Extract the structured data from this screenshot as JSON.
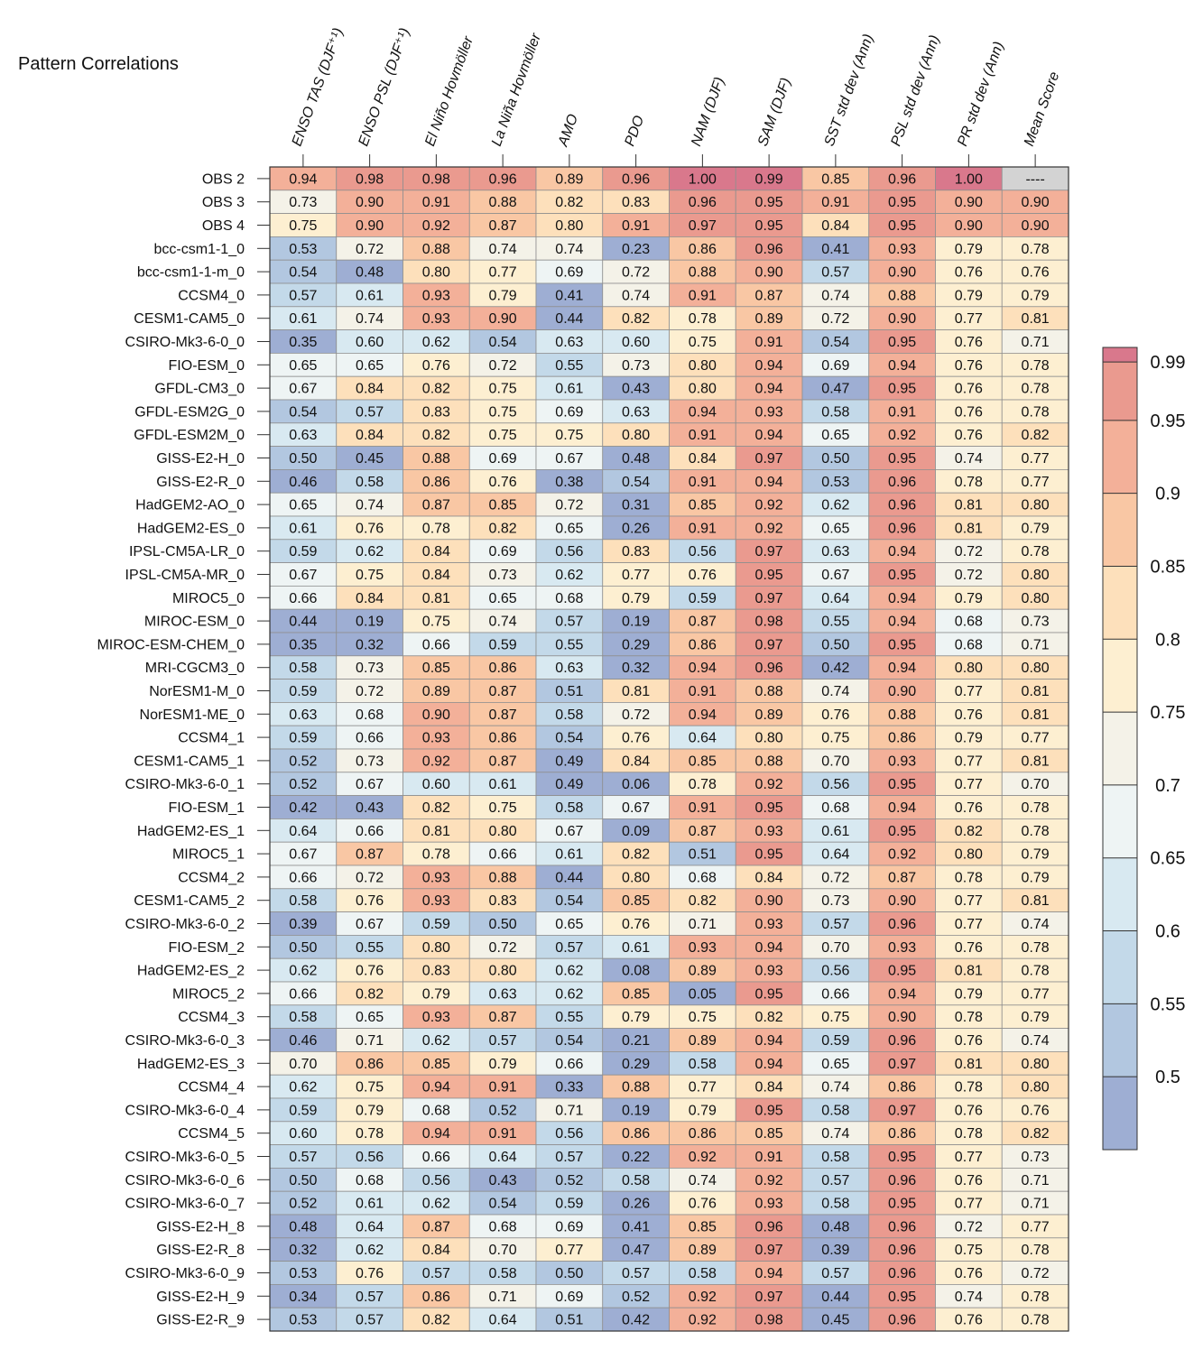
{
  "title": "Pattern Correlations",
  "chart_data": {
    "type": "heatmap",
    "columns": [
      "ENSO TAS (DJF⁺¹)",
      "ENSO PSL (DJF⁺¹)",
      "El Niño Hovmöller",
      "La Niña Hovmöller",
      "AMO",
      "PDO",
      "NAM (DJF)",
      "SAM (DJF)",
      "SST std dev (Ann)",
      "PSL std dev (Ann)",
      "PR std dev (Ann)",
      "Mean Score"
    ],
    "rows": [
      "OBS 2",
      "OBS 3",
      "OBS 4",
      "bcc-csm1-1_0",
      "bcc-csm1-1-m_0",
      "CCSM4_0",
      "CESM1-CAM5_0",
      "CSIRO-Mk3-6-0_0",
      "FIO-ESM_0",
      "GFDL-CM3_0",
      "GFDL-ESM2G_0",
      "GFDL-ESM2M_0",
      "GISS-E2-H_0",
      "GISS-E2-R_0",
      "HadGEM2-AO_0",
      "HadGEM2-ES_0",
      "IPSL-CM5A-LR_0",
      "IPSL-CM5A-MR_0",
      "MIROC5_0",
      "MIROC-ESM_0",
      "MIROC-ESM-CHEM_0",
      "MRI-CGCM3_0",
      "NorESM1-M_0",
      "NorESM1-ME_0",
      "CCSM4_1",
      "CESM1-CAM5_1",
      "CSIRO-Mk3-6-0_1",
      "FIO-ESM_1",
      "HadGEM2-ES_1",
      "MIROC5_1",
      "CCSM4_2",
      "CESM1-CAM5_2",
      "CSIRO-Mk3-6-0_2",
      "FIO-ESM_2",
      "HadGEM2-ES_2",
      "MIROC5_2",
      "CCSM4_3",
      "CSIRO-Mk3-6-0_3",
      "HadGEM2-ES_3",
      "CCSM4_4",
      "CSIRO-Mk3-6-0_4",
      "CCSM4_5",
      "CSIRO-Mk3-6-0_5",
      "CSIRO-Mk3-6-0_6",
      "CSIRO-Mk3-6-0_7",
      "GISS-E2-H_8",
      "GISS-E2-R_8",
      "CSIRO-Mk3-6-0_9",
      "GISS-E2-H_9",
      "GISS-E2-R_9"
    ],
    "values": [
      [
        "0.94",
        "0.98",
        "0.98",
        "0.96",
        "0.89",
        "0.96",
        "1.00",
        "0.99",
        "0.85",
        "0.96",
        "1.00",
        "----"
      ],
      [
        "0.73",
        "0.90",
        "0.91",
        "0.88",
        "0.82",
        "0.83",
        "0.96",
        "0.95",
        "0.91",
        "0.95",
        "0.90",
        "0.90"
      ],
      [
        "0.75",
        "0.90",
        "0.92",
        "0.87",
        "0.80",
        "0.91",
        "0.97",
        "0.95",
        "0.84",
        "0.95",
        "0.90",
        "0.90"
      ],
      [
        "0.53",
        "0.72",
        "0.88",
        "0.74",
        "0.74",
        "0.23",
        "0.86",
        "0.96",
        "0.41",
        "0.93",
        "0.79",
        "0.78"
      ],
      [
        "0.54",
        "0.48",
        "0.80",
        "0.77",
        "0.69",
        "0.72",
        "0.88",
        "0.90",
        "0.57",
        "0.90",
        "0.76",
        "0.76"
      ],
      [
        "0.57",
        "0.61",
        "0.93",
        "0.79",
        "0.41",
        "0.74",
        "0.91",
        "0.87",
        "0.74",
        "0.88",
        "0.79",
        "0.79"
      ],
      [
        "0.61",
        "0.74",
        "0.93",
        "0.90",
        "0.44",
        "0.82",
        "0.78",
        "0.89",
        "0.72",
        "0.90",
        "0.77",
        "0.81"
      ],
      [
        "0.35",
        "0.60",
        "0.62",
        "0.54",
        "0.63",
        "0.60",
        "0.75",
        "0.91",
        "0.54",
        "0.95",
        "0.76",
        "0.71"
      ],
      [
        "0.65",
        "0.65",
        "0.76",
        "0.72",
        "0.55",
        "0.73",
        "0.80",
        "0.94",
        "0.69",
        "0.94",
        "0.76",
        "0.78"
      ],
      [
        "0.67",
        "0.84",
        "0.82",
        "0.75",
        "0.61",
        "0.43",
        "0.80",
        "0.94",
        "0.47",
        "0.95",
        "0.76",
        "0.78"
      ],
      [
        "0.54",
        "0.57",
        "0.83",
        "0.75",
        "0.69",
        "0.63",
        "0.94",
        "0.93",
        "0.58",
        "0.91",
        "0.76",
        "0.78"
      ],
      [
        "0.63",
        "0.84",
        "0.82",
        "0.75",
        "0.75",
        "0.80",
        "0.91",
        "0.94",
        "0.65",
        "0.92",
        "0.76",
        "0.82"
      ],
      [
        "0.50",
        "0.45",
        "0.88",
        "0.69",
        "0.67",
        "0.48",
        "0.84",
        "0.97",
        "0.50",
        "0.95",
        "0.74",
        "0.77"
      ],
      [
        "0.46",
        "0.58",
        "0.86",
        "0.76",
        "0.38",
        "0.54",
        "0.91",
        "0.94",
        "0.53",
        "0.96",
        "0.78",
        "0.77"
      ],
      [
        "0.65",
        "0.74",
        "0.87",
        "0.85",
        "0.72",
        "0.31",
        "0.85",
        "0.92",
        "0.62",
        "0.96",
        "0.81",
        "0.80"
      ],
      [
        "0.61",
        "0.76",
        "0.78",
        "0.82",
        "0.65",
        "0.26",
        "0.91",
        "0.92",
        "0.65",
        "0.96",
        "0.81",
        "0.79"
      ],
      [
        "0.59",
        "0.62",
        "0.84",
        "0.69",
        "0.56",
        "0.83",
        "0.56",
        "0.97",
        "0.63",
        "0.94",
        "0.72",
        "0.78"
      ],
      [
        "0.67",
        "0.75",
        "0.84",
        "0.73",
        "0.62",
        "0.77",
        "0.76",
        "0.95",
        "0.67",
        "0.95",
        "0.72",
        "0.80"
      ],
      [
        "0.66",
        "0.84",
        "0.81",
        "0.65",
        "0.68",
        "0.79",
        "0.59",
        "0.97",
        "0.64",
        "0.94",
        "0.79",
        "0.80"
      ],
      [
        "0.44",
        "0.19",
        "0.75",
        "0.74",
        "0.57",
        "0.19",
        "0.87",
        "0.98",
        "0.55",
        "0.94",
        "0.68",
        "0.73"
      ],
      [
        "0.35",
        "0.32",
        "0.66",
        "0.59",
        "0.55",
        "0.29",
        "0.86",
        "0.97",
        "0.50",
        "0.95",
        "0.68",
        "0.71"
      ],
      [
        "0.58",
        "0.73",
        "0.85",
        "0.86",
        "0.63",
        "0.32",
        "0.94",
        "0.96",
        "0.42",
        "0.94",
        "0.80",
        "0.80"
      ],
      [
        "0.59",
        "0.72",
        "0.89",
        "0.87",
        "0.51",
        "0.81",
        "0.91",
        "0.88",
        "0.74",
        "0.90",
        "0.77",
        "0.81"
      ],
      [
        "0.63",
        "0.68",
        "0.90",
        "0.87",
        "0.58",
        "0.72",
        "0.94",
        "0.89",
        "0.76",
        "0.88",
        "0.76",
        "0.81"
      ],
      [
        "0.59",
        "0.66",
        "0.93",
        "0.86",
        "0.54",
        "0.76",
        "0.64",
        "0.80",
        "0.75",
        "0.86",
        "0.79",
        "0.77"
      ],
      [
        "0.52",
        "0.73",
        "0.92",
        "0.87",
        "0.49",
        "0.84",
        "0.85",
        "0.88",
        "0.70",
        "0.93",
        "0.77",
        "0.81"
      ],
      [
        "0.52",
        "0.67",
        "0.60",
        "0.61",
        "0.49",
        "0.06",
        "0.78",
        "0.92",
        "0.56",
        "0.95",
        "0.77",
        "0.70"
      ],
      [
        "0.42",
        "0.43",
        "0.82",
        "0.75",
        "0.58",
        "0.67",
        "0.91",
        "0.95",
        "0.68",
        "0.94",
        "0.76",
        "0.78"
      ],
      [
        "0.64",
        "0.66",
        "0.81",
        "0.80",
        "0.67",
        "0.09",
        "0.87",
        "0.93",
        "0.61",
        "0.95",
        "0.82",
        "0.78"
      ],
      [
        "0.67",
        "0.87",
        "0.78",
        "0.66",
        "0.61",
        "0.82",
        "0.51",
        "0.95",
        "0.64",
        "0.92",
        "0.80",
        "0.79"
      ],
      [
        "0.66",
        "0.72",
        "0.93",
        "0.88",
        "0.44",
        "0.80",
        "0.68",
        "0.84",
        "0.72",
        "0.87",
        "0.78",
        "0.79"
      ],
      [
        "0.58",
        "0.76",
        "0.93",
        "0.83",
        "0.54",
        "0.85",
        "0.82",
        "0.90",
        "0.73",
        "0.90",
        "0.77",
        "0.81"
      ],
      [
        "0.39",
        "0.67",
        "0.59",
        "0.50",
        "0.65",
        "0.76",
        "0.71",
        "0.93",
        "0.57",
        "0.96",
        "0.77",
        "0.74"
      ],
      [
        "0.50",
        "0.55",
        "0.80",
        "0.72",
        "0.57",
        "0.61",
        "0.93",
        "0.94",
        "0.70",
        "0.93",
        "0.76",
        "0.78"
      ],
      [
        "0.62",
        "0.76",
        "0.83",
        "0.80",
        "0.62",
        "0.08",
        "0.89",
        "0.93",
        "0.56",
        "0.95",
        "0.81",
        "0.78"
      ],
      [
        "0.66",
        "0.82",
        "0.79",
        "0.63",
        "0.62",
        "0.85",
        "0.05",
        "0.95",
        "0.66",
        "0.94",
        "0.79",
        "0.77"
      ],
      [
        "0.58",
        "0.65",
        "0.93",
        "0.87",
        "0.55",
        "0.79",
        "0.75",
        "0.82",
        "0.75",
        "0.90",
        "0.78",
        "0.79"
      ],
      [
        "0.46",
        "0.71",
        "0.62",
        "0.57",
        "0.54",
        "0.21",
        "0.89",
        "0.94",
        "0.59",
        "0.96",
        "0.76",
        "0.74"
      ],
      [
        "0.70",
        "0.86",
        "0.85",
        "0.79",
        "0.66",
        "0.29",
        "0.58",
        "0.94",
        "0.65",
        "0.97",
        "0.81",
        "0.80"
      ],
      [
        "0.62",
        "0.75",
        "0.94",
        "0.91",
        "0.33",
        "0.88",
        "0.77",
        "0.84",
        "0.74",
        "0.86",
        "0.78",
        "0.80"
      ],
      [
        "0.59",
        "0.79",
        "0.68",
        "0.52",
        "0.71",
        "0.19",
        "0.79",
        "0.95",
        "0.58",
        "0.97",
        "0.76",
        "0.76"
      ],
      [
        "0.60",
        "0.78",
        "0.94",
        "0.91",
        "0.56",
        "0.86",
        "0.86",
        "0.85",
        "0.74",
        "0.86",
        "0.78",
        "0.82"
      ],
      [
        "0.57",
        "0.56",
        "0.66",
        "0.64",
        "0.57",
        "0.22",
        "0.92",
        "0.91",
        "0.58",
        "0.95",
        "0.77",
        "0.73"
      ],
      [
        "0.50",
        "0.68",
        "0.56",
        "0.43",
        "0.52",
        "0.58",
        "0.74",
        "0.92",
        "0.57",
        "0.96",
        "0.76",
        "0.71"
      ],
      [
        "0.52",
        "0.61",
        "0.62",
        "0.54",
        "0.59",
        "0.26",
        "0.76",
        "0.93",
        "0.58",
        "0.95",
        "0.77",
        "0.71"
      ],
      [
        "0.48",
        "0.64",
        "0.87",
        "0.68",
        "0.69",
        "0.41",
        "0.85",
        "0.96",
        "0.48",
        "0.96",
        "0.72",
        "0.77"
      ],
      [
        "0.32",
        "0.62",
        "0.84",
        "0.70",
        "0.77",
        "0.47",
        "0.89",
        "0.97",
        "0.39",
        "0.96",
        "0.75",
        "0.78"
      ],
      [
        "0.53",
        "0.76",
        "0.57",
        "0.58",
        "0.50",
        "0.57",
        "0.58",
        "0.94",
        "0.57",
        "0.96",
        "0.76",
        "0.72"
      ],
      [
        "0.34",
        "0.57",
        "0.86",
        "0.71",
        "0.69",
        "0.52",
        "0.92",
        "0.97",
        "0.44",
        "0.95",
        "0.74",
        "0.78"
      ],
      [
        "0.53",
        "0.57",
        "0.82",
        "0.64",
        "0.51",
        "0.42",
        "0.92",
        "0.98",
        "0.45",
        "0.96",
        "0.76",
        "0.78"
      ]
    ],
    "colorbar": {
      "bounds": [
        0.45,
        0.5,
        0.55,
        0.6,
        0.65,
        0.7,
        0.75,
        0.8,
        0.85,
        0.9,
        0.95,
        0.99,
        1.0
      ],
      "colors": [
        "#9eaed3",
        "#b2c7e0",
        "#c3d9e9",
        "#d8e9f1",
        "#eef4f4",
        "#f4f2e8",
        "#fdefd1",
        "#fde0bb",
        "#f9c7a4",
        "#f3b099",
        "#ea9a8f",
        "#d9788c"
      ],
      "tick_labels": [
        "0.5",
        "0.55",
        "0.6",
        "0.65",
        "0.7",
        "0.75",
        "0.8",
        "0.85",
        "0.9",
        "0.95",
        "0.99"
      ],
      "tick_values": [
        0.5,
        0.55,
        0.6,
        0.65,
        0.7,
        0.75,
        0.8,
        0.85,
        0.9,
        0.95,
        0.99
      ],
      "missing_color": "#d3d3d3"
    }
  }
}
